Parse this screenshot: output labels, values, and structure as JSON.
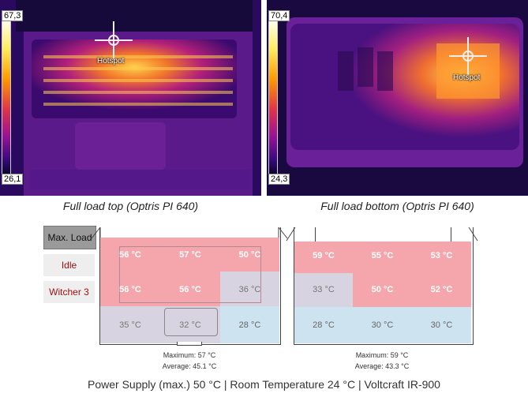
{
  "images": {
    "top": {
      "max_label": "67,3",
      "min_label": "26,1",
      "hotspot_label": "Hotspot",
      "caption": "Full load top (Optris PI 640)"
    },
    "bottom": {
      "max_label": "70,4",
      "min_label": "24,3",
      "hotspot_label": "Hotspot",
      "caption": "Full load bottom (Optris PI 640)"
    }
  },
  "tabs": [
    {
      "label": "Max. Load",
      "active": true
    },
    {
      "label": "Idle",
      "active": false
    },
    {
      "label": "Witcher 3",
      "active": false
    }
  ],
  "top_map": {
    "cells": [
      "56 °C",
      "57 °C",
      "50 °C",
      "56 °C",
      "56 °C",
      "36 °C",
      "35 °C",
      "32 °C",
      "28 °C"
    ],
    "maximum": "Maximum: 57 °C",
    "average": "Average: 45.1 °C"
  },
  "bottom_map": {
    "cells": [
      "59 °C",
      "55 °C",
      "53 °C",
      "33 °C",
      "50 °C",
      "52 °C",
      "28 °C",
      "30 °C",
      "30 °C"
    ],
    "maximum": "Maximum: 59 °C",
    "average": "Average: 43.3 °C"
  },
  "footer": "Power Supply (max.)  50 °C | Room Temperature 24 °C | Voltcraft IR-900",
  "colors": {
    "hot": "#f4a6ac",
    "warm": "#d8d3e0",
    "cool": "#cde3ef",
    "tab_active": "#9a9a9a",
    "tab_text": "#a01010"
  }
}
